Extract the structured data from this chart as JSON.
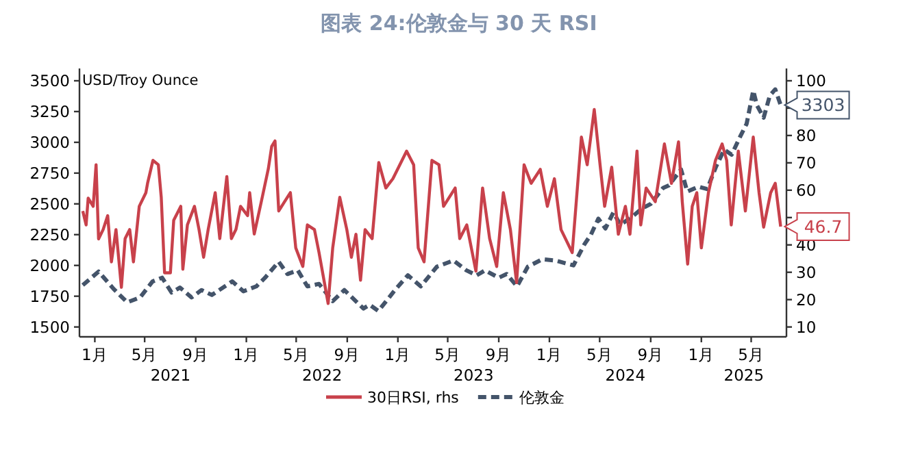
{
  "chart_data": {
    "type": "line",
    "title": "图表 24:伦敦金与 30 天 RSI",
    "ylabel": "USD/Troy Ounce",
    "xlim": [
      "2020-11-25",
      "2025-07-25"
    ],
    "xticks": [
      {
        "value": "2021-01-01",
        "label": "1月"
      },
      {
        "value": "2021-05-01",
        "label": "5月"
      },
      {
        "value": "2021-09-01",
        "label": "9月"
      },
      {
        "value": "2022-01-01",
        "label": "1月"
      },
      {
        "value": "2022-05-01",
        "label": "5月"
      },
      {
        "value": "2022-09-01",
        "label": "9月"
      },
      {
        "value": "2023-01-01",
        "label": "1月"
      },
      {
        "value": "2023-05-01",
        "label": "5月"
      },
      {
        "value": "2023-09-01",
        "label": "9月"
      },
      {
        "value": "2024-01-01",
        "label": "1月"
      },
      {
        "value": "2024-05-01",
        "label": "5月"
      },
      {
        "value": "2024-09-01",
        "label": "9月"
      },
      {
        "value": "2025-01-01",
        "label": "1月"
      },
      {
        "value": "2025-05-01",
        "label": "5月"
      }
    ],
    "ylim": [
      1420,
      3600
    ],
    "yticks": [
      1500,
      1750,
      2000,
      2250,
      2500,
      2750,
      3000,
      3250,
      3500
    ],
    "y2lim": [
      6.4,
      104.5
    ],
    "y2ticks": [
      10,
      20,
      30,
      40,
      {
        "value": 50,
        "label": null
      },
      60,
      70,
      80,
      {
        "value": 90,
        "label": null
      },
      100
    ],
    "legend": "bottom",
    "annotations": [
      "2021",
      "2022",
      "2023",
      "2024",
      "2025"
    ],
    "series": [
      {
        "name": "30日RSI, rhs",
        "color": "#c8414b",
        "axis": "y2",
        "line_style": "solid",
        "x": [
          "2020-12-03",
          "2020-12-11",
          "2020-12-16",
          "2020-12-28",
          "2021-01-04",
          "2021-01-10",
          "2021-01-21",
          "2021-02-01",
          "2021-02-10",
          "2021-02-21",
          "2021-03-06",
          "2021-03-15",
          "2021-03-26",
          "2021-04-04",
          "2021-04-18",
          "2021-05-04",
          "2021-05-08",
          "2021-05-21",
          "2021-06-03",
          "2021-06-10",
          "2021-06-18",
          "2021-07-02",
          "2021-07-10",
          "2021-07-27",
          "2021-08-01",
          "2021-08-12",
          "2021-08-29",
          "2021-09-09",
          "2021-09-20",
          "2021-10-01",
          "2021-10-18",
          "2021-10-29",
          "2021-11-15",
          "2021-11-26",
          "2021-12-07",
          "2021-12-18",
          "2022-01-04",
          "2022-01-09",
          "2022-01-20",
          "2022-02-06",
          "2022-02-23",
          "2022-03-03",
          "2022-03-11",
          "2022-03-20",
          "2022-04-03",
          "2022-04-17",
          "2022-04-30",
          "2022-05-17",
          "2022-05-28",
          "2022-06-14",
          "2022-06-25",
          "2022-07-17",
          "2022-07-28",
          "2022-08-14",
          "2022-08-31",
          "2022-09-11",
          "2022-09-22",
          "2022-10-03",
          "2022-10-14",
          "2022-10-31",
          "2022-11-16",
          "2022-12-03",
          "2022-12-20",
          "2023-01-22",
          "2023-02-08",
          "2023-02-19",
          "2023-03-05",
          "2023-03-24",
          "2023-04-10",
          "2023-04-21",
          "2023-05-19",
          "2023-05-30",
          "2023-06-16",
          "2023-07-08",
          "2023-07-24",
          "2023-08-10",
          "2023-08-27",
          "2023-09-12",
          "2023-09-29",
          "2023-10-14",
          "2023-11-01",
          "2023-11-18",
          "2023-12-10",
          "2023-12-27",
          "2024-01-13",
          "2024-01-29",
          "2024-02-25",
          "2024-03-18",
          "2024-04-01",
          "2024-04-18",
          "2024-05-02",
          "2024-05-13",
          "2024-05-30",
          "2024-06-15",
          "2024-07-02",
          "2024-07-13",
          "2024-07-30",
          "2024-08-08",
          "2024-08-21",
          "2024-09-12",
          "2024-10-04",
          "2024-10-21",
          "2024-11-07",
          "2024-11-16",
          "2024-11-29",
          "2024-12-10",
          "2024-12-21",
          "2025-01-01",
          "2025-01-18",
          "2025-02-04",
          "2025-02-20",
          "2025-03-03",
          "2025-03-14",
          "2025-03-31",
          "2025-04-17",
          "2025-05-06",
          "2025-05-20",
          "2025-05-31",
          "2025-06-17",
          "2025-06-28",
          "2025-07-11"
        ],
        "values": [
          52.4,
          47.3,
          57.1,
          54.1,
          69.3,
          42.2,
          45.6,
          50.7,
          33.8,
          45.6,
          24.5,
          42.3,
          45.6,
          33.8,
          54.1,
          59.1,
          62.5,
          70.9,
          69.3,
          57.4,
          29.8,
          29.8,
          49,
          54.1,
          31.1,
          47.3,
          54.1,
          45.6,
          35.5,
          45.6,
          59.1,
          42.3,
          65,
          42.3,
          45.7,
          54.1,
          50.7,
          59.1,
          44,
          55.8,
          67.9,
          76,
          78,
          52.4,
          55.8,
          59.1,
          38.9,
          32.1,
          47.3,
          45.6,
          37.2,
          18.6,
          38.9,
          57.4,
          45.6,
          35.5,
          43.9,
          27.1,
          45.6,
          42.3,
          70.1,
          60.8,
          64.2,
          74.3,
          69.3,
          38.9,
          33.8,
          70.9,
          69.3,
          54.1,
          60.8,
          42.3,
          47.3,
          30.4,
          60.8,
          42.3,
          32.1,
          59.1,
          45.6,
          26.2,
          69.3,
          62.5,
          67.6,
          54.1,
          64.2,
          45.6,
          37.2,
          79.4,
          69.3,
          89.5,
          69.3,
          54.1,
          68.4,
          43.9,
          54.1,
          43.9,
          74.3,
          47.3,
          60.8,
          55.8,
          76.9,
          62.5,
          77.7,
          55.8,
          33,
          54.1,
          59.1,
          38.9,
          59.1,
          70.9,
          76.9,
          70.9,
          47.3,
          74.3,
          52.4,
          79.4,
          59.1,
          46.5,
          59.1,
          62.5,
          46.7
        ],
        "value_labels": [
          null,
          null,
          null,
          null,
          null,
          null,
          null,
          null,
          null,
          null,
          null,
          null,
          null,
          null,
          null,
          null,
          null,
          null,
          null,
          null,
          null,
          null,
          null,
          null,
          null,
          null,
          null,
          null,
          null,
          null,
          null,
          null,
          null,
          null,
          null,
          null,
          null,
          null,
          null,
          null,
          null,
          null,
          null,
          null,
          null,
          null,
          null,
          null,
          null,
          null,
          null,
          null,
          null,
          null,
          null,
          null,
          null,
          null,
          null,
          null,
          null,
          null,
          null,
          null,
          null,
          null,
          null,
          null,
          null,
          null,
          null,
          null,
          null,
          null,
          null,
          null,
          null,
          null,
          null,
          null,
          null,
          null,
          null,
          null,
          null,
          null,
          null,
          null,
          null,
          null,
          null,
          null,
          null,
          null,
          null,
          null,
          null,
          null,
          null,
          null,
          null,
          null,
          null,
          null,
          null,
          null,
          null,
          null,
          null,
          null,
          null,
          null,
          null,
          null,
          null,
          null,
          null,
          null,
          null,
          null,
          "46.7"
        ]
      },
      {
        "name": "伦敦金",
        "color": "#44546a",
        "line_style": "dashed",
        "x": [
          "2020-12-03",
          "2021-01-10",
          "2021-02-15",
          "2021-03-20",
          "2021-04-20",
          "2021-05-20",
          "2021-06-12",
          "2021-07-05",
          "2021-07-25",
          "2021-08-22",
          "2021-09-15",
          "2021-10-10",
          "2021-11-28",
          "2021-12-25",
          "2022-01-25",
          "2022-02-15",
          "2022-03-20",
          "2022-04-10",
          "2022-05-05",
          "2022-05-28",
          "2022-06-25",
          "2022-07-28",
          "2022-08-25",
          "2022-10-10",
          "2022-10-25",
          "2022-11-15",
          "2022-12-25",
          "2023-01-25",
          "2023-02-25",
          "2023-04-05",
          "2023-05-15",
          "2023-06-15",
          "2023-07-10",
          "2023-07-30",
          "2023-09-01",
          "2023-09-20",
          "2023-10-15",
          "2023-11-10",
          "2023-12-15",
          "2024-01-15",
          "2024-02-28",
          "2024-03-25",
          "2024-04-10",
          "2024-04-28",
          "2024-05-15",
          "2024-06-03",
          "2024-06-20",
          "2024-07-20",
          "2024-08-10",
          "2024-09-01",
          "2024-10-01",
          "2024-10-15",
          "2024-11-13",
          "2024-11-28",
          "2024-12-25",
          "2025-01-15",
          "2025-02-05",
          "2025-02-25",
          "2025-03-15",
          "2025-04-05",
          "2025-04-20",
          "2025-05-06",
          "2025-05-15",
          "2025-05-31",
          "2025-06-15",
          "2025-06-28",
          "2025-07-11"
        ],
        "values": [
          1840,
          1950,
          1810,
          1700,
          1740,
          1870,
          1900,
          1780,
          1820,
          1740,
          1800,
          1760,
          1870,
          1790,
          1830,
          1900,
          2030,
          1930,
          1960,
          1830,
          1850,
          1710,
          1800,
          1650,
          1680,
          1630,
          1800,
          1920,
          1830,
          1990,
          2040,
          1960,
          1920,
          1960,
          1900,
          1930,
          1830,
          1990,
          2050,
          2040,
          2000,
          2170,
          2250,
          2380,
          2300,
          2430,
          2330,
          2400,
          2460,
          2500,
          2630,
          2650,
          2780,
          2600,
          2640,
          2620,
          2800,
          2940,
          2900,
          3050,
          3150,
          3420,
          3300,
          3200,
          3380,
          3430,
          3303
        ],
        "value_labels": [
          null,
          null,
          null,
          null,
          null,
          null,
          null,
          null,
          null,
          null,
          null,
          null,
          null,
          null,
          null,
          null,
          null,
          null,
          null,
          null,
          null,
          null,
          null,
          null,
          null,
          null,
          null,
          null,
          null,
          null,
          null,
          null,
          null,
          null,
          null,
          null,
          null,
          null,
          null,
          null,
          null,
          null,
          null,
          null,
          null,
          null,
          null,
          null,
          null,
          null,
          null,
          null,
          null,
          null,
          null,
          null,
          null,
          null,
          null,
          null,
          null,
          null,
          null,
          null,
          null,
          null,
          "3303"
        ]
      }
    ]
  }
}
